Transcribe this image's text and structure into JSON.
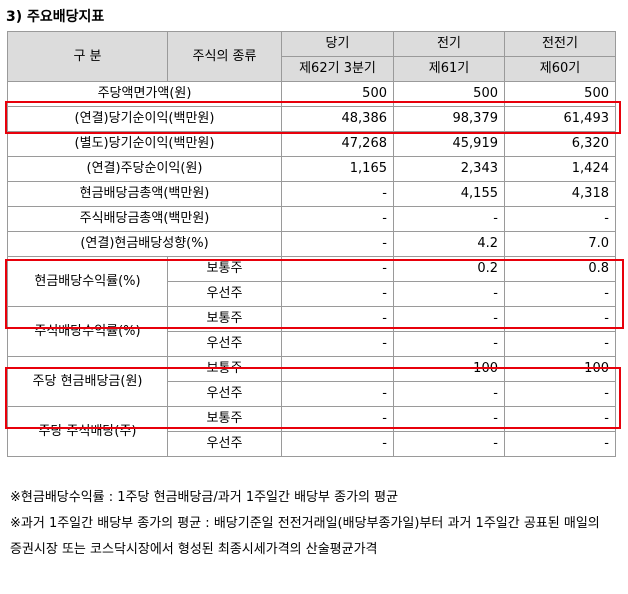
{
  "title": "3) 주요배당지표",
  "header": {
    "col_gubun": "구 분",
    "col_type": "주식의 종류",
    "periods": [
      "당기",
      "전기",
      "전전기"
    ],
    "subperiods": [
      "제62기 3분기",
      "제61기",
      "제60기"
    ]
  },
  "rows": [
    {
      "label": "주당액면가액(원)",
      "type": "",
      "values": [
        "500",
        "500",
        "500"
      ]
    },
    {
      "label": "(연결)당기순이익(백만원)",
      "type": "",
      "values": [
        "48,386",
        "98,379",
        "61,493"
      ]
    },
    {
      "label": "(별도)당기순이익(백만원)",
      "type": "",
      "values": [
        "47,268",
        "45,919",
        "6,320"
      ]
    },
    {
      "label": "(연결)주당순이익(원)",
      "type": "",
      "values": [
        "1,165",
        "2,343",
        "1,424"
      ]
    },
    {
      "label": "현금배당금총액(백만원)",
      "type": "",
      "values": [
        "-",
        "4,155",
        "4,318"
      ]
    },
    {
      "label": "주식배당금총액(백만원)",
      "type": "",
      "values": [
        "-",
        "-",
        "-"
      ]
    },
    {
      "label": "(연결)현금배당성향(%)",
      "type": "",
      "values": [
        "-",
        "4.2",
        "7.0"
      ]
    }
  ],
  "groups": [
    {
      "label": "현금배당수익률(%)",
      "rows": [
        {
          "type": "보통주",
          "values": [
            "-",
            "0.2",
            "0.8"
          ]
        },
        {
          "type": "우선주",
          "values": [
            "-",
            "-",
            "-"
          ]
        }
      ]
    },
    {
      "label": "주식배당수익률(%)",
      "rows": [
        {
          "type": "보통주",
          "values": [
            "-",
            "-",
            "-"
          ]
        },
        {
          "type": "우선주",
          "values": [
            "-",
            "-",
            "-"
          ]
        }
      ]
    },
    {
      "label": "주당 현금배당금(원)",
      "rows": [
        {
          "type": "보통주",
          "values": [
            "-",
            "100",
            "100"
          ]
        },
        {
          "type": "우선주",
          "values": [
            "-",
            "-",
            "-"
          ]
        }
      ]
    },
    {
      "label": "주당 주식배당(주)",
      "rows": [
        {
          "type": "보통주",
          "values": [
            "-",
            "-",
            "-"
          ]
        },
        {
          "type": "우선주",
          "values": [
            "-",
            "-",
            "-"
          ]
        }
      ]
    }
  ],
  "notes": [
    "※현금배당수익률 : 1주당 현금배당금/과거 1주일간 배당부 종가의 평균",
    "※과거 1주일간 배당부 종가의 평균 : 배당기준일 전전거래일(배당부종가일)부터 과거 1주일간 공표된 매일의 증권시장 또는 코스닥시장에서 형성된 최종시세가격의 산술평균가격"
  ],
  "colors": {
    "highlight": "#e8000b",
    "header_bg": "#dcdcdc",
    "border": "#9a9a9a"
  }
}
